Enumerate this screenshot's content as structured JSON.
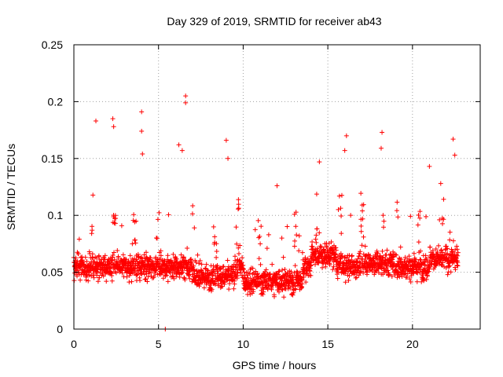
{
  "chart_data": {
    "type": "scatter",
    "title": "Day 329 of 2019, SRMTID for receiver ab43",
    "xlabel": "GPS time / hours",
    "ylabel": "SRMTID / TECUs",
    "xlim": [
      0,
      24
    ],
    "ylim": [
      0,
      0.25
    ],
    "xticks": [
      0,
      5,
      10,
      15,
      20
    ],
    "xtick_labels": [
      "0",
      "5",
      "10",
      "15",
      "20"
    ],
    "yticks": [
      0,
      0.05,
      0.1,
      0.15,
      0.2,
      0.25
    ],
    "ytick_labels": [
      "0",
      "0.05",
      "0.1",
      "0.15",
      "0.2",
      "0.25"
    ],
    "grid": true,
    "marker": "+",
    "series_color": "#ff0000",
    "x_data_end": 22.7,
    "n_points": 2300,
    "typical_range": [
      0.02,
      0.1
    ],
    "outliers": [
      {
        "x": 1.3,
        "y": 0.183
      },
      {
        "x": 2.3,
        "y": 0.185
      },
      {
        "x": 2.35,
        "y": 0.178
      },
      {
        "x": 4.0,
        "y": 0.191
      },
      {
        "x": 4.0,
        "y": 0.174
      },
      {
        "x": 4.05,
        "y": 0.154
      },
      {
        "x": 6.6,
        "y": 0.205
      },
      {
        "x": 6.6,
        "y": 0.199
      },
      {
        "x": 6.2,
        "y": 0.162
      },
      {
        "x": 6.4,
        "y": 0.157
      },
      {
        "x": 9.0,
        "y": 0.166
      },
      {
        "x": 9.1,
        "y": 0.15
      },
      {
        "x": 12.0,
        "y": 0.126
      },
      {
        "x": 14.5,
        "y": 0.147
      },
      {
        "x": 16.1,
        "y": 0.17
      },
      {
        "x": 16.0,
        "y": 0.157
      },
      {
        "x": 18.2,
        "y": 0.173
      },
      {
        "x": 18.15,
        "y": 0.159
      },
      {
        "x": 21.0,
        "y": 0.143
      },
      {
        "x": 22.4,
        "y": 0.167
      },
      {
        "x": 22.5,
        "y": 0.153
      },
      {
        "x": 5.4,
        "y": 0.0
      }
    ]
  }
}
